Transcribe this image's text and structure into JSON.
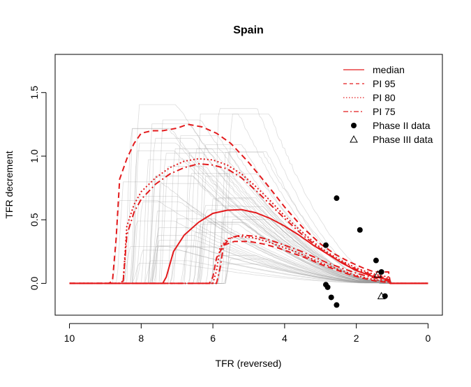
{
  "chart_data": {
    "type": "line",
    "title": "Spain",
    "xlabel": "TFR (reversed)",
    "ylabel": "TFR decrement",
    "xlim": [
      10.4,
      -0.4
    ],
    "ylim": [
      -0.25,
      1.8
    ],
    "x_reversed": true,
    "xticks": [
      10,
      8,
      6,
      4,
      2,
      0
    ],
    "xtick_labels": [
      "10",
      "8",
      "6",
      "4",
      "2",
      "0"
    ],
    "yticks": [
      0.0,
      0.5,
      1.0,
      1.5
    ],
    "ytick_labels": [
      "0.0",
      "0.5",
      "1.0",
      "1.5"
    ],
    "grid": false,
    "legend_position": "top-right",
    "colors": {
      "red": "#e31a1c",
      "trajectories": "#9a9a9a",
      "points": "#000000"
    },
    "legend": [
      {
        "label": "median",
        "style": "solid"
      },
      {
        "label": "PI 95",
        "style": "dashed"
      },
      {
        "label": "PI 80",
        "style": "dotted"
      },
      {
        "label": "PI 75",
        "style": "dashdot"
      },
      {
        "label": "Phase II data",
        "style": "filled-circle"
      },
      {
        "label": "Phase III data",
        "style": "open-triangle"
      }
    ],
    "background_trajectories": {
      "count": 60,
      "description_of_source": "posterior sample curves drawn in light grey"
    },
    "series": [
      {
        "name": "median",
        "style": "solid",
        "x": [
          10,
          8,
          7.4,
          7.3,
          7.1,
          6.8,
          6.4,
          6.0,
          5.6,
          5.2,
          4.8,
          4.4,
          4.0,
          3.6,
          3.2,
          2.8,
          2.4,
          2.0,
          1.6,
          1.3,
          1.1,
          1.05,
          0.9,
          0
        ],
        "y": [
          0,
          0,
          0,
          0.05,
          0.25,
          0.38,
          0.48,
          0.55,
          0.575,
          0.58,
          0.555,
          0.51,
          0.45,
          0.38,
          0.3,
          0.23,
          0.16,
          0.1,
          0.06,
          0.04,
          0.03,
          0,
          0,
          0
        ]
      },
      {
        "name": "PI 95 upper",
        "style": "dashed",
        "x": [
          10,
          8.9,
          8.8,
          8.7,
          8.6,
          8.4,
          8.2,
          8.0,
          7.7,
          7.4,
          7.0,
          6.7,
          6.3,
          5.9,
          5.5,
          5.0,
          4.5,
          4.0,
          3.5,
          3.0,
          2.6,
          2.2,
          1.8,
          1.5,
          1.3,
          1.1,
          1.05,
          0.9,
          0
        ],
        "y": [
          0,
          0,
          0.02,
          0.35,
          0.82,
          0.98,
          1.1,
          1.18,
          1.2,
          1.2,
          1.22,
          1.25,
          1.23,
          1.18,
          1.1,
          0.95,
          0.78,
          0.6,
          0.44,
          0.31,
          0.23,
          0.17,
          0.12,
          0.09,
          0.09,
          0.09,
          0,
          0,
          0
        ]
      },
      {
        "name": "PI 95 lower",
        "style": "dashed",
        "x": [
          10,
          6.1,
          6.0,
          5.9,
          5.7,
          5.4,
          5.0,
          4.6,
          4.2,
          3.8,
          3.4,
          3.0,
          2.6,
          2.2,
          1.8,
          1.5,
          1.2,
          1.05,
          0.9,
          0
        ],
        "y": [
          0,
          0,
          0.05,
          0.2,
          0.3,
          0.33,
          0.33,
          0.31,
          0.28,
          0.24,
          0.2,
          0.15,
          0.11,
          0.07,
          0.04,
          0.02,
          0.01,
          0,
          0,
          0
        ]
      },
      {
        "name": "PI 80 upper",
        "style": "dotted",
        "x": [
          10,
          8.6,
          8.5,
          8.4,
          8.2,
          8.0,
          7.6,
          7.2,
          6.8,
          6.4,
          6.0,
          5.6,
          5.2,
          4.8,
          4.4,
          4.0,
          3.5,
          3.0,
          2.5,
          2.0,
          1.6,
          1.3,
          1.1,
          1.05,
          0.9,
          0
        ],
        "y": [
          0,
          0,
          0.02,
          0.45,
          0.62,
          0.72,
          0.83,
          0.91,
          0.96,
          0.98,
          0.97,
          0.93,
          0.86,
          0.76,
          0.65,
          0.53,
          0.4,
          0.28,
          0.19,
          0.12,
          0.08,
          0.06,
          0.05,
          0,
          0,
          0
        ]
      },
      {
        "name": "PI 80 lower",
        "style": "dotted",
        "x": [
          10,
          6.0,
          5.9,
          5.8,
          5.6,
          5.3,
          4.9,
          4.5,
          4.1,
          3.7,
          3.3,
          2.9,
          2.5,
          2.1,
          1.7,
          1.3,
          1.1,
          1.05,
          0.9,
          0
        ],
        "y": [
          0,
          0,
          0.1,
          0.28,
          0.35,
          0.37,
          0.36,
          0.33,
          0.29,
          0.25,
          0.2,
          0.15,
          0.11,
          0.07,
          0.04,
          0.02,
          0.01,
          0,
          0,
          0
        ]
      },
      {
        "name": "PI 75 upper",
        "style": "dashdot",
        "x": [
          10,
          8.6,
          8.5,
          8.4,
          8.2,
          8.0,
          7.6,
          7.2,
          6.8,
          6.4,
          6.0,
          5.6,
          5.2,
          4.8,
          4.4,
          4.0,
          3.5,
          3.0,
          2.5,
          2.0,
          1.6,
          1.3,
          1.1,
          1.05,
          0.9,
          0
        ],
        "y": [
          0,
          0,
          0.02,
          0.38,
          0.56,
          0.66,
          0.78,
          0.86,
          0.91,
          0.94,
          0.93,
          0.9,
          0.83,
          0.73,
          0.62,
          0.51,
          0.38,
          0.27,
          0.18,
          0.11,
          0.07,
          0.05,
          0.04,
          0,
          0,
          0
        ]
      },
      {
        "name": "PI 75 lower",
        "style": "dashdot",
        "x": [
          10,
          5.9,
          5.8,
          5.7,
          5.5,
          5.2,
          4.8,
          4.4,
          4.0,
          3.6,
          3.2,
          2.8,
          2.4,
          2.0,
          1.6,
          1.3,
          1.1,
          1.05,
          0.9,
          0
        ],
        "y": [
          0,
          0,
          0.12,
          0.3,
          0.36,
          0.38,
          0.37,
          0.34,
          0.3,
          0.26,
          0.21,
          0.16,
          0.12,
          0.08,
          0.05,
          0.03,
          0.02,
          0,
          0,
          0
        ]
      }
    ],
    "phase2_points": [
      {
        "x": 2.55,
        "y": 0.67
      },
      {
        "x": 1.9,
        "y": 0.42
      },
      {
        "x": 2.85,
        "y": 0.3
      },
      {
        "x": 1.45,
        "y": 0.18
      },
      {
        "x": 1.3,
        "y": 0.09
      },
      {
        "x": 2.85,
        "y": -0.01
      },
      {
        "x": 2.8,
        "y": -0.03
      },
      {
        "x": 2.7,
        "y": -0.11
      },
      {
        "x": 2.55,
        "y": -0.17
      },
      {
        "x": 1.2,
        "y": -0.1
      }
    ],
    "phase3_points": [
      {
        "x": 1.4,
        "y": 0.07
      },
      {
        "x": 1.3,
        "y": -0.1
      }
    ]
  }
}
